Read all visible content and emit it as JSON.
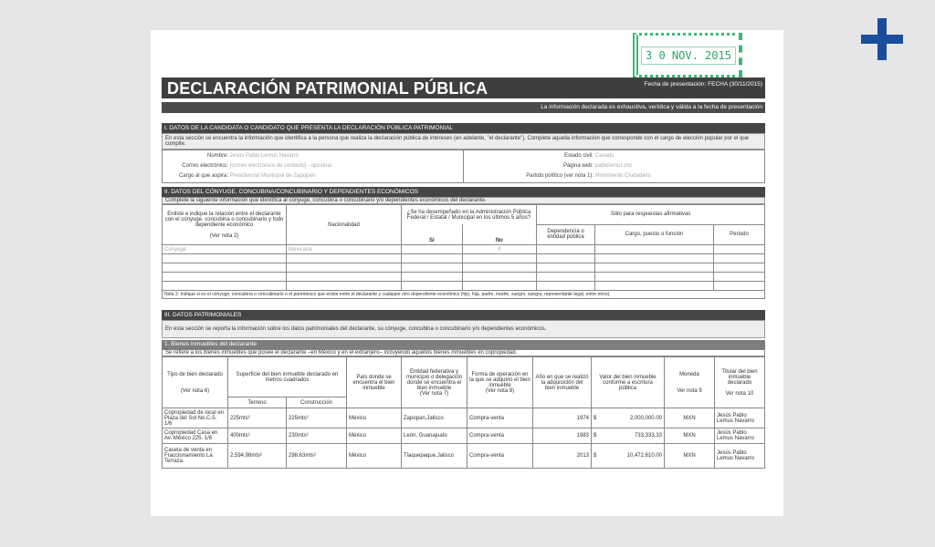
{
  "stamp": "3 0 NOV. 2015",
  "title": "DECLARACIÓN PATRIMONIAL PÚBLICA",
  "fecha": "Fecha de presentación: FECHA (30/11/2015)",
  "veracidad": "La información declarada es exhaustiva, verídica y válida a la fecha de presentación",
  "s1": {
    "header": "I. DATOS DE LA CANDIDATA O CANDIDATO QUE PRESENTA LA DECLARACIÓN PÚBLICA PATRIMONIAL",
    "intro": "En esta sección se encuentra la información que identifica a la persona que realiza la declaración pública de intereses (en adelante, \"el declarante\"). Complete aquella información que corresponde con el cargo de elección popular por el que compite.",
    "fields": [
      {
        "label": "Nombre:",
        "value": "Jesús Pablo Lemus Navarro"
      },
      {
        "label": "Correo electrónico:",
        "value": "[correo electrónico de contacto] - opcional"
      },
      {
        "label": "Cargo al que aspira:",
        "value": "Presidencial Municipal de Zapopan"
      },
      {
        "label": "Estado civil:",
        "value": "Casado"
      },
      {
        "label": "Página web:",
        "value": "pablolemus.mx"
      },
      {
        "label": "Partido político (ver nota 1):",
        "value": "Movimiento Ciudadano"
      }
    ]
  },
  "s2": {
    "header": "II. DATOS DEL CÓNYUGE, CONCUBINA/CONCUBINARIO Y DEPENDIENTES ECONÓMICOS",
    "intro": "Complete la siguiente información que identifica al cónyuge, concubina o concubinario y/o dependientes económicos del declarante.",
    "h_rel": "Enliste e indique la relación entre el declarante con el cónyuge, concubina o concubinario y todo dependiente económico",
    "h_rel_note": "(Ver nota 2)",
    "h_nac": "Nacionalidad",
    "h_adm": "¿Se ha desempeñado en la Administración Pública Federal / Estatal / Municipal en los últimos 5 años?",
    "h_si": "Si",
    "h_no": "No",
    "h_afirm": "Sólo para respuestas afirmativas",
    "h_dep": "Dependencia o entidad pública",
    "h_cargo": "Cargo, puesto o función",
    "h_periodo": "Periodo",
    "rows": [
      {
        "rel": "Cónyuge",
        "nac": "Mexicana",
        "si": "",
        "no": "X"
      }
    ],
    "note": "Nota 2: Indique si es el cónyuge, concubina o concubinario o el parentesco que existe entre el declarante y cualquier otro dependiente económico (hijo, hija, padre, madre, suegro, suegra, representante legal, entre otros)."
  },
  "s3": {
    "header": "III. DATOS PATRIMONIALES",
    "intro": "En esta sección se reporta la información sobre los datos patrimoniales del declarante, su cónyuge, concubina o concubinario y/o dependientes económicos.",
    "sub": "1. Bienes inmuebles del declarante",
    "sub_intro": "Se refiere a los bienes inmuebles que posee el declarante –en México y en el extranjero– incluyendo aquellos bienes inmuebles en copropiedad.",
    "h": {
      "tipo": "Tipo de bien declarado",
      "tipo_note": "(Ver nota 6)",
      "sup": "Superficie del bien inmueble declarado en metros cuadrados",
      "terreno": "Terreno",
      "construccion": "Construcción",
      "pais": "País donde se encuentra el bien inmueble",
      "entidad": "Entidad federativa y municipio o delegación donde se encuentra el bien inmueble",
      "entidad_note": "(Ver nota 7)",
      "forma": "Forma de operación en la que se adquirió el bien inmueble",
      "forma_note": "(Ver nota 8)",
      "anio": "Año en que se realizó la adquisición del bien inmueble",
      "valor": "Valor del bien inmueble conforme a escritura pública",
      "moneda": "Moneda",
      "moneda_note": "Ver nota 9",
      "titular": "Titular del bien inmueble declarado",
      "titular_note": "Ver nota 10"
    },
    "rows": [
      {
        "tipo": "Copropiedad de local en Plaza del Sol No.C-5. 1/6",
        "terreno": "225mts²",
        "construccion": "225mts²",
        "pais": "México",
        "entidad": "Zapopan,Jalisco",
        "forma": "Compra-venta",
        "anio": "1974",
        "cur": "$",
        "valor": "2,000,000.00",
        "moneda": "MXN",
        "titular": "Jesús Pablo Lemus Navarro"
      },
      {
        "tipo": "Copropiedad Casa en Av. México 225. 1/6",
        "terreno": "400mts²",
        "construccion": "230mts²",
        "pais": "México",
        "entidad": "León, Guanajuato",
        "forma": "Compra-venta",
        "anio": "1983",
        "cur": "$",
        "valor": "733,333.33",
        "moneda": "MXN",
        "titular": "Jesús Pablo Lemus Navarro"
      },
      {
        "tipo": "Caseta de venta en Fraccionamiento La Terraza.",
        "terreno": "2,594.98mts²",
        "construccion": "298.63mts²",
        "pais": "México",
        "entidad": "Tlaquepaque,Jalisco",
        "forma": "Compra-venta",
        "anio": "2013",
        "cur": "$",
        "valor": "10,472,610.00",
        "moneda": "MXN",
        "titular": "Jesús Pablo Lemus Navarro"
      }
    ]
  }
}
